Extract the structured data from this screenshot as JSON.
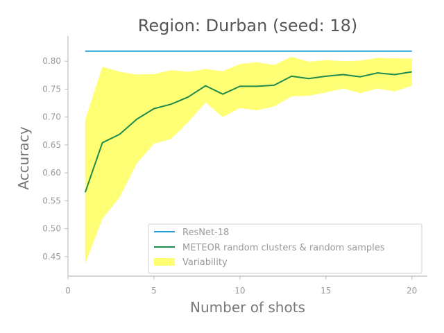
{
  "chart_data": {
    "type": "line",
    "title": "Region: Durban (seed: 18)",
    "xlabel": "Number of shots",
    "ylabel": "Accuracy",
    "xlim": [
      0,
      20.9
    ],
    "ylim": [
      0.415,
      0.845
    ],
    "xticks": [
      0,
      5,
      10,
      15,
      20
    ],
    "xtick_labels": [
      "0",
      "5",
      "10",
      "15",
      "20"
    ],
    "yticks": [
      0.45,
      0.5,
      0.55,
      0.6,
      0.65,
      0.7,
      0.75,
      0.8
    ],
    "ytick_labels": [
      "0.45",
      "0.50",
      "0.55",
      "0.60",
      "0.65",
      "0.70",
      "0.75",
      "0.80"
    ],
    "grid": false,
    "legend_position": "lower-right",
    "series": [
      {
        "name": "ResNet-18",
        "kind": "hline",
        "color": "#1f9fd4",
        "x": [
          1,
          20
        ],
        "values": [
          0.818,
          0.818
        ]
      },
      {
        "name": "METEOR random clusters & random samples",
        "kind": "line",
        "color": "#1f8a4c",
        "x": [
          1,
          2,
          3,
          4,
          5,
          6,
          7,
          8,
          9,
          10,
          11,
          12,
          13,
          14,
          15,
          16,
          17,
          18,
          19,
          20
        ],
        "values": [
          0.565,
          0.654,
          0.669,
          0.696,
          0.715,
          0.723,
          0.736,
          0.756,
          0.741,
          0.755,
          0.755,
          0.757,
          0.773,
          0.769,
          0.773,
          0.776,
          0.772,
          0.779,
          0.776,
          0.781
        ]
      },
      {
        "name": "Variability",
        "kind": "band",
        "color": "#ffff66",
        "x": [
          1,
          2,
          3,
          4,
          5,
          6,
          7,
          8,
          9,
          10,
          11,
          12,
          13,
          14,
          15,
          16,
          17,
          18,
          19,
          20
        ],
        "upper": [
          0.695,
          0.79,
          0.781,
          0.776,
          0.777,
          0.784,
          0.781,
          0.786,
          0.782,
          0.795,
          0.798,
          0.793,
          0.808,
          0.799,
          0.802,
          0.8,
          0.801,
          0.806,
          0.805,
          0.805
        ],
        "lower": [
          0.437,
          0.518,
          0.556,
          0.617,
          0.652,
          0.661,
          0.691,
          0.726,
          0.7,
          0.716,
          0.712,
          0.719,
          0.737,
          0.738,
          0.744,
          0.751,
          0.743,
          0.751,
          0.746,
          0.756
        ]
      }
    ]
  }
}
